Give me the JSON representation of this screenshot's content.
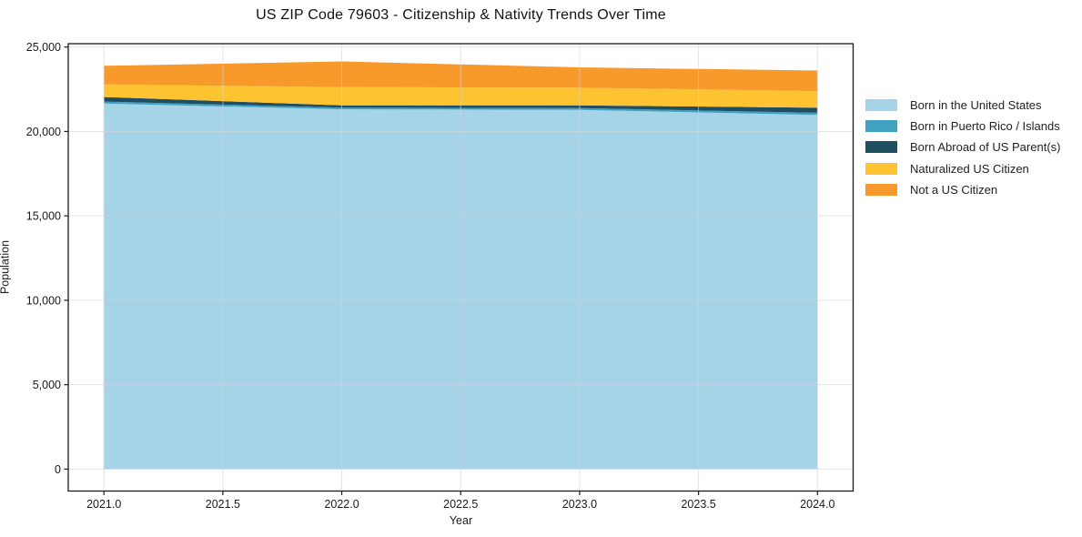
{
  "title": "US ZIP Code 79603 - Citizenship & Nativity Trends Over Time",
  "chart_data": {
    "type": "area",
    "stacked": true,
    "title": "US ZIP Code 79603 - Citizenship & Nativity Trends Over Time",
    "xlabel": "Year",
    "ylabel": "Population",
    "x": [
      2021,
      2022,
      2023,
      2024
    ],
    "series": [
      {
        "name": "Born in the United States",
        "color": "#A5D3E8",
        "values": [
          21650,
          21310,
          21280,
          20980
        ]
      },
      {
        "name": "Born in Puerto Rico / Islands",
        "color": "#41A1C1",
        "values": [
          120,
          100,
          110,
          130
        ]
      },
      {
        "name": "Born Abroad of US Parent(s)",
        "color": "#1F4E63",
        "values": [
          270,
          140,
          160,
          300
        ]
      },
      {
        "name": "Naturalized US Citizen",
        "color": "#FDC330",
        "values": [
          750,
          1080,
          1040,
          980
        ]
      },
      {
        "name": "Not a US Citizen",
        "color": "#F8992B",
        "values": [
          1100,
          1520,
          1210,
          1220
        ]
      }
    ],
    "x_tick_labels": [
      "2021.0",
      "2021.5",
      "2022.0",
      "2022.5",
      "2023.0",
      "2023.5",
      "2024.0"
    ],
    "x_tick_values": [
      2021,
      2021.5,
      2022,
      2022.5,
      2023,
      2023.5,
      2024
    ],
    "y_tick_labels": [
      "0",
      "5,000",
      "10,000",
      "15,000",
      "20,000",
      "25,000"
    ],
    "y_tick_values": [
      0,
      5000,
      10000,
      15000,
      20000,
      25000
    ],
    "xlim": [
      2020.85,
      2024.15
    ],
    "ylim": [
      -1300,
      25200
    ],
    "grid": true,
    "legend_position": "outside-right",
    "colors": {
      "spine": "#1a1a1a",
      "grid": "#d4d4d4",
      "tick_text": "#1a1a1a",
      "background": "#ffffff"
    }
  }
}
